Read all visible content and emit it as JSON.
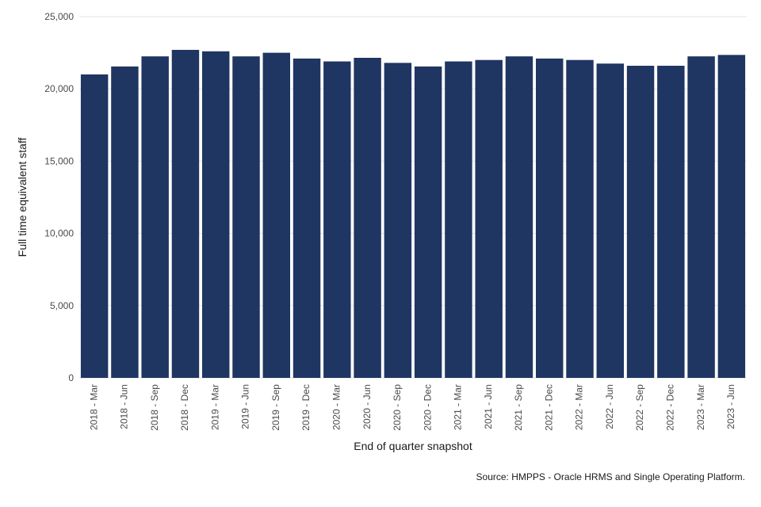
{
  "chart_data": {
    "type": "bar",
    "title": "",
    "xlabel": "End of quarter snapshot",
    "ylabel": "Full time equivalent staff",
    "ylim": [
      0,
      25000
    ],
    "yticks": [
      0,
      5000,
      10000,
      15000,
      20000,
      25000
    ],
    "ytick_labels": [
      "0",
      "5,000",
      "10,000",
      "15,000",
      "20,000",
      "25,000"
    ],
    "grid": true,
    "bar_color": "#1f3562",
    "categories": [
      "2018 - Mar",
      "2018 - Jun",
      "2018 - Sep",
      "2018 - Dec",
      "2019 - Mar",
      "2019 - Jun",
      "2019 - Sep",
      "2019 - Dec",
      "2020 - Mar",
      "2020 - Jun",
      "2020 - Sep",
      "2020 - Dec",
      "2021 - Mar",
      "2021 - Jun",
      "2021 - Sep",
      "2021 - Dec",
      "2022 - Mar",
      "2022 - Jun",
      "2022 - Sep",
      "2022 - Dec",
      "2023 - Mar",
      "2023 - Jun"
    ],
    "values": [
      21000,
      21550,
      22250,
      22700,
      22600,
      22250,
      22500,
      22100,
      21900,
      22150,
      21800,
      21550,
      21900,
      22000,
      22250,
      22100,
      22000,
      21750,
      21600,
      21600,
      22250,
      22350
    ],
    "source": "Source: HMPPS - Oracle HRMS and Single Operating Platform."
  }
}
